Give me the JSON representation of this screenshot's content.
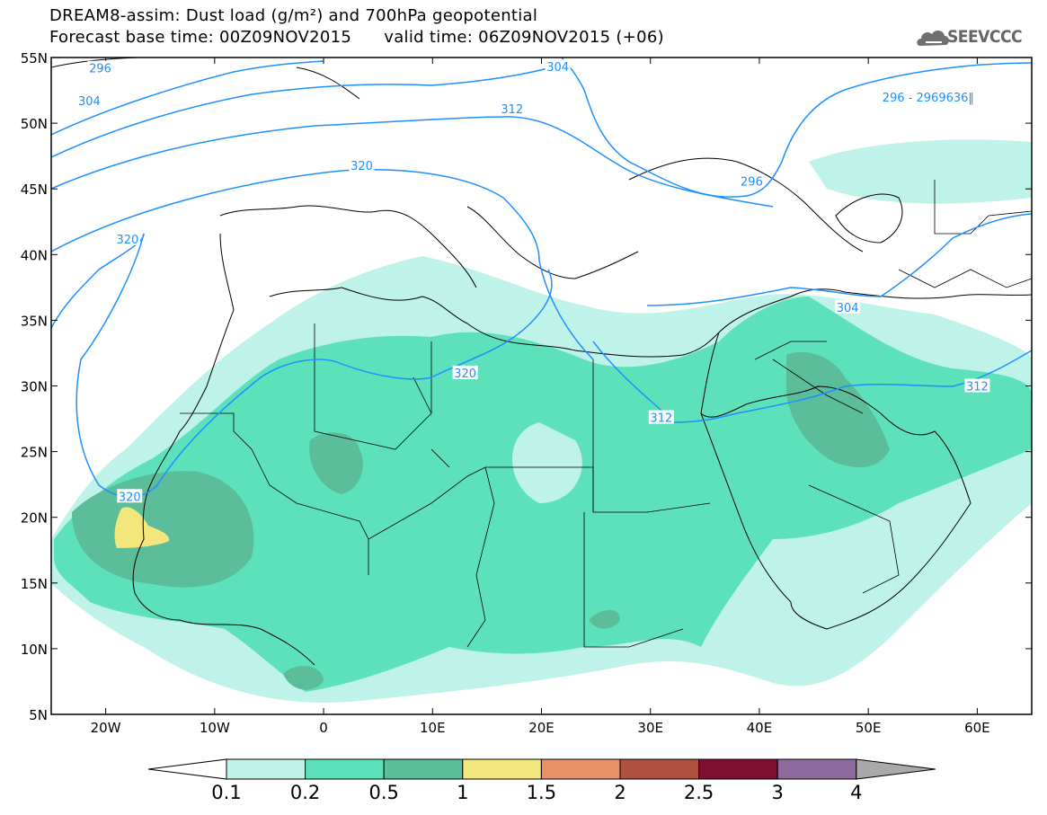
{
  "header": {
    "line1": "DREAM8-assim: Dust load (g/m²) and 700hPa geopotential",
    "line2": "Forecast base time: 00Z09NOV2015      valid time: 06Z09NOV2015 (+06)"
  },
  "logo": {
    "text": "SEEVCCC",
    "icon": "cloud-logo-icon"
  },
  "map": {
    "lat_labels": [
      "55N",
      "50N",
      "45N",
      "40N",
      "35N",
      "30N",
      "25N",
      "20N",
      "15N",
      "10N",
      "5N"
    ],
    "lon_labels": [
      "20W",
      "10W",
      "0",
      "10E",
      "20E",
      "30E",
      "40E",
      "50E",
      "60E"
    ],
    "lon_range": [
      -25,
      65
    ],
    "lat_range": [
      5,
      55
    ],
    "contour_labels": [
      {
        "label": "296",
        "lon": -20.5,
        "lat": 54.2
      },
      {
        "label": "304",
        "lon": -21.5,
        "lat": 51.7
      },
      {
        "label": "304",
        "lon": 21.5,
        "lat": 54.3
      },
      {
        "label": "312",
        "lon": 17.3,
        "lat": 51.1
      },
      {
        "label": "320",
        "lon": 3.5,
        "lat": 46.8
      },
      {
        "label": "320",
        "lon": -18.0,
        "lat": 41.2
      },
      {
        "label": "296 - 2969636‖",
        "lon": 55.5,
        "lat": 52.0
      },
      {
        "label": "296",
        "lon": 39.3,
        "lat": 45.6
      },
      {
        "label": "304",
        "lon": 48.1,
        "lat": 36.0
      },
      {
        "label": "320",
        "lon": 13.0,
        "lat": 31.0
      },
      {
        "label": "312",
        "lon": 60.0,
        "lat": 30.0
      },
      {
        "label": "312",
        "lon": 31.0,
        "lat": 27.6
      },
      {
        "label": "320",
        "lon": -17.8,
        "lat": 21.6
      }
    ]
  },
  "colorbar": {
    "colors": [
      "#ffffff",
      "#bff2e8",
      "#5ce1bb",
      "#5bbd9a",
      "#f3e67c",
      "#e89068",
      "#b0513f",
      "#7e0f30",
      "#8d6a9e",
      "#a9a9a9"
    ],
    "labels": [
      "0.1",
      "0.2",
      "0.5",
      "1",
      "1.5",
      "2",
      "2.5",
      "3",
      "4"
    ],
    "unit": "g/m²"
  }
}
